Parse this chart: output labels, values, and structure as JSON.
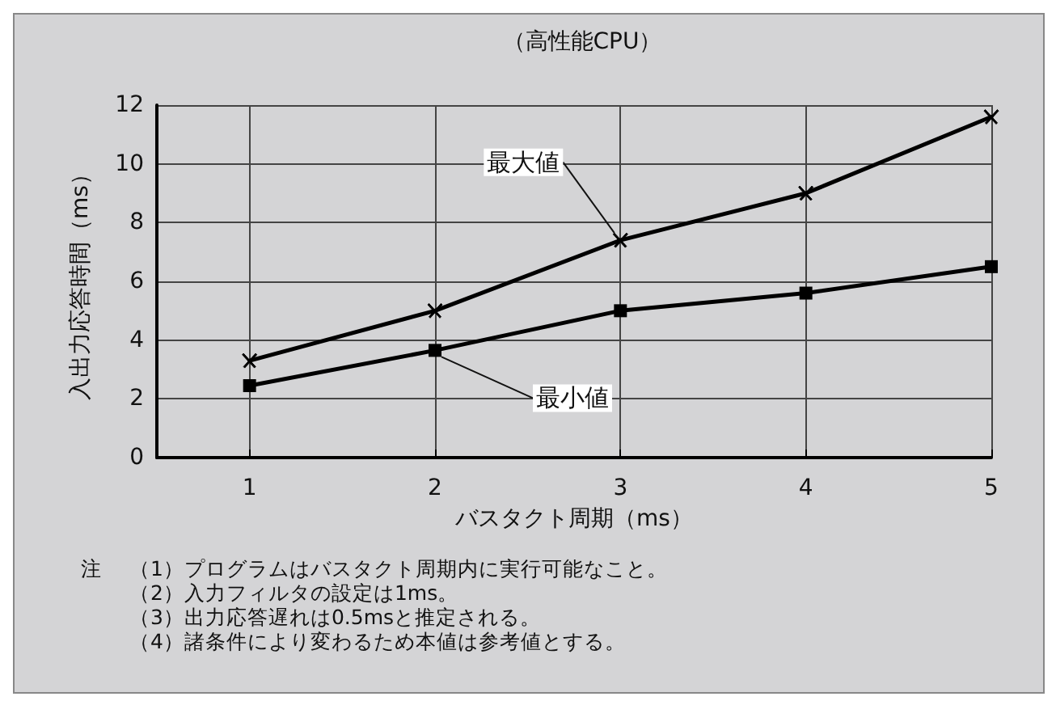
{
  "chart_data": {
    "type": "line",
    "title": "（高性能CPU）",
    "xlabel": "バスタクト周期（ms）",
    "ylabel": "入出力応答時間（ms）",
    "x": [
      1,
      2,
      3,
      4,
      5
    ],
    "series": [
      {
        "name": "最大値",
        "color": "#000000",
        "marker": "cross",
        "values": [
          3.3,
          5.0,
          7.4,
          9.0,
          11.6
        ]
      },
      {
        "name": "最小値",
        "color": "#000000",
        "marker": "square",
        "values": [
          2.45,
          3.65,
          5.0,
          5.6,
          6.5
        ]
      }
    ],
    "xlim": [
      0.5,
      5
    ],
    "xticks": [
      1,
      2,
      3,
      4,
      5
    ],
    "ylim": [
      0,
      12
    ],
    "yticks": [
      0,
      2,
      4,
      6,
      8,
      10,
      12
    ],
    "grid": true,
    "legend": false,
    "line_style": "solid",
    "annotations": [
      "注",
      "（1）プログラムはバスタクト周期内に実行可能なこと。",
      "（2）入力フィルタの設定は1ms。",
      "（3）出力応答遅れは0.5msと推定される。",
      "（4）諸条件により変わるため本値は参考値とする。"
    ]
  }
}
